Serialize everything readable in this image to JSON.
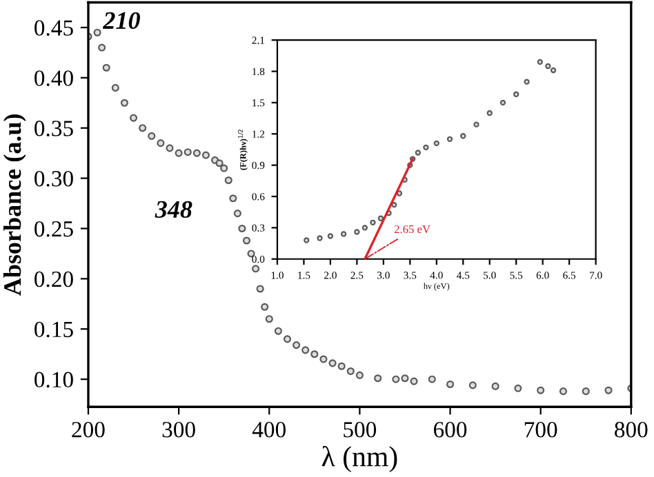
{
  "chart_data": [
    {
      "type": "scatter",
      "xlabel": "λ (nm)",
      "ylabel": "Absorbance (a.u)",
      "marker": "circle",
      "grid": false,
      "legend": false,
      "xlim": [
        200,
        800
      ],
      "ylim": [
        0.0725,
        0.475
      ],
      "xticks": [
        200,
        300,
        400,
        500,
        600,
        700,
        800
      ],
      "yticks": [
        {
          "value": 0.1,
          "label": "0.10"
        },
        {
          "value": 0.15,
          "label": "0.15"
        },
        {
          "value": 0.2,
          "label": "0.20"
        },
        {
          "value": 0.25,
          "label": "0.25"
        },
        {
          "value": 0.3,
          "label": "0.30"
        },
        {
          "value": 0.35,
          "label": "0.35"
        },
        {
          "value": 0.4,
          "label": "0.40"
        },
        {
          "value": 0.45,
          "label": "0.45"
        }
      ],
      "series": [
        {
          "color": "#5a5a5a",
          "x": [
            200,
            210,
            215,
            220,
            230,
            240,
            250,
            260,
            270,
            280,
            290,
            300,
            310,
            320,
            330,
            340,
            345,
            350,
            355,
            360,
            365,
            370,
            375,
            380,
            385,
            390,
            395,
            400,
            410,
            420,
            430,
            440,
            450,
            460,
            470,
            480,
            490,
            500,
            520,
            540,
            550,
            560,
            580,
            600,
            625,
            650,
            675,
            700,
            725,
            750,
            775,
            800
          ],
          "values": [
            0.441,
            0.445,
            0.43,
            0.41,
            0.39,
            0.375,
            0.36,
            0.35,
            0.342,
            0.335,
            0.33,
            0.325,
            0.326,
            0.325,
            0.323,
            0.318,
            0.315,
            0.31,
            0.298,
            0.28,
            0.265,
            0.25,
            0.238,
            0.225,
            0.21,
            0.19,
            0.172,
            0.16,
            0.148,
            0.14,
            0.134,
            0.129,
            0.125,
            0.12,
            0.116,
            0.113,
            0.108,
            0.104,
            0.101,
            0.1,
            0.101,
            0.098,
            0.1,
            0.095,
            0.094,
            0.093,
            0.091,
            0.089,
            0.088,
            0.088,
            0.089,
            0.091
          ]
        }
      ],
      "annotations": [
        {
          "text": "210",
          "x": 210,
          "y": 0.445
        },
        {
          "text": "348",
          "x": 348,
          "y": 0.318
        }
      ]
    },
    {
      "type": "scatter",
      "xlabel": "hν (eV)",
      "ylabel": "(F(R)hν)$^{1/2}$",
      "marker": "circle",
      "grid": false,
      "legend": false,
      "xlim": [
        1.0,
        7.0
      ],
      "ylim": [
        0,
        2.1
      ],
      "xticks": [
        {
          "value": 1.0,
          "label": "1.0"
        },
        {
          "value": 1.5,
          "label": "1.5"
        },
        {
          "value": 2.0,
          "label": "2.0"
        },
        {
          "value": 2.5,
          "label": "2.5"
        },
        {
          "value": 3.0,
          "label": "3.0"
        },
        {
          "value": 3.5,
          "label": "3.5"
        },
        {
          "value": 4.0,
          "label": "4.0"
        },
        {
          "value": 4.5,
          "label": "4.5"
        },
        {
          "value": 5.0,
          "label": "5.0"
        },
        {
          "value": 5.5,
          "label": "5.5"
        },
        {
          "value": 6.0,
          "label": "6.0"
        },
        {
          "value": 6.5,
          "label": "6.5"
        },
        {
          "value": 7.0,
          "label": "7.0"
        }
      ],
      "yticks": [
        {
          "value": 0,
          "label": "0.0"
        },
        {
          "value": 0.3,
          "label": "0.3"
        },
        {
          "value": 0.6,
          "label": "0.6"
        },
        {
          "value": 0.9,
          "label": "0.9"
        },
        {
          "value": 1.2,
          "label": "1.2"
        },
        {
          "value": 1.5,
          "label": "1.5"
        },
        {
          "value": 1.8,
          "label": "1.8"
        },
        {
          "value": 2.1,
          "label": "2.1"
        }
      ],
      "series": [
        {
          "color": "#5a5a5a",
          "x": [
            1.55,
            1.8,
            2.0,
            2.25,
            2.5,
            2.65,
            2.8,
            2.95,
            3.1,
            3.2,
            3.3,
            3.4,
            3.5,
            3.55,
            3.65,
            3.8,
            4.0,
            4.25,
            4.5,
            4.75,
            5.0,
            5.25,
            5.5,
            5.7,
            5.95,
            6.1,
            6.2
          ],
          "values": [
            0.18,
            0.2,
            0.22,
            0.24,
            0.26,
            0.3,
            0.35,
            0.39,
            0.44,
            0.52,
            0.63,
            0.76,
            0.9,
            0.96,
            1.02,
            1.07,
            1.11,
            1.15,
            1.18,
            1.29,
            1.4,
            1.5,
            1.58,
            1.7,
            1.89,
            1.85,
            1.81
          ]
        },
        {
          "type": "line",
          "marker": "none",
          "color": "#e0202a",
          "x": [
            2.65,
            3.55
          ],
          "values": [
            0,
            0.96
          ]
        }
      ],
      "annotations": [
        {
          "text": "2.65 eV",
          "x": 2.65,
          "y": 0
        }
      ]
    }
  ]
}
